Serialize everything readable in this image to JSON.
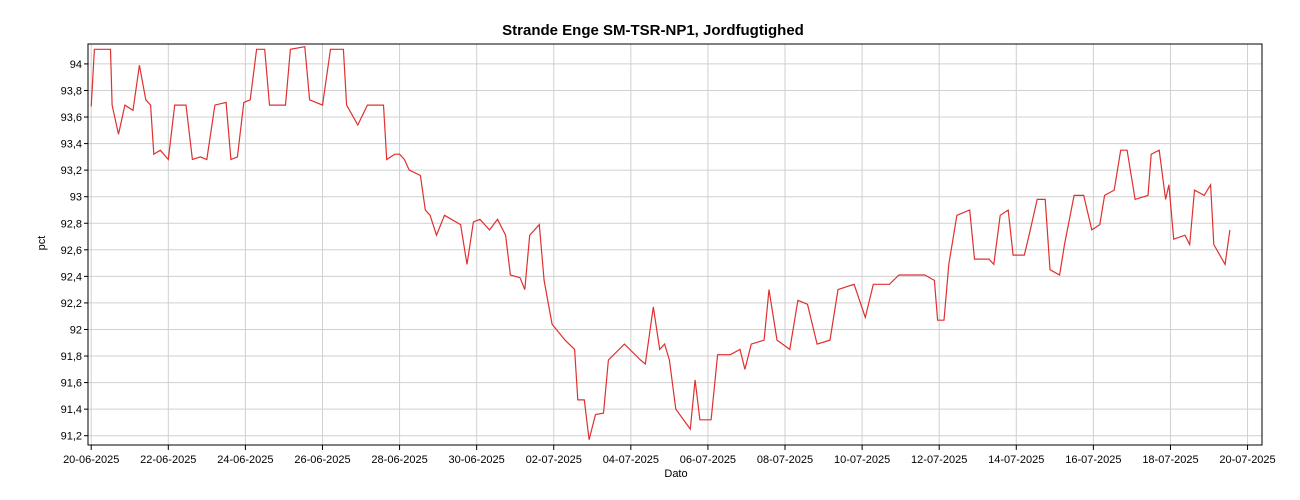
{
  "chart_data": {
    "type": "line",
    "title": "Strande Enge SM-TSR-NP1, Jordfugtighed",
    "x_label": "Dato",
    "y_label": "pct",
    "grid": true,
    "xlim": [
      "19-06-2025 22:00",
      "20-07-2025 09:00"
    ],
    "xticks": [
      "20-06-2025",
      "22-06-2025",
      "24-06-2025",
      "26-06-2025",
      "28-06-2025",
      "30-06-2025",
      "02-07-2025",
      "04-07-2025",
      "06-07-2025",
      "08-07-2025",
      "10-07-2025",
      "12-07-2025",
      "14-07-2025",
      "16-07-2025",
      "18-07-2025",
      "20-07-2025"
    ],
    "ylim": [
      91.13,
      94.15
    ],
    "yticks": [
      {
        "value": 91.2,
        "label": "91,2"
      },
      {
        "value": 91.4,
        "label": "91,4"
      },
      {
        "value": 91.6,
        "label": "91,6"
      },
      {
        "value": 91.8,
        "label": "91,8"
      },
      92,
      {
        "value": 92.2,
        "label": "92,2"
      },
      {
        "value": 92.4,
        "label": "92,4"
      },
      {
        "value": 92.6,
        "label": "92,6"
      },
      {
        "value": 92.8,
        "label": "92,8"
      },
      93,
      {
        "value": 93.2,
        "label": "93,2"
      },
      {
        "value": 93.4,
        "label": "93,4"
      },
      {
        "value": 93.6,
        "label": "93,6"
      },
      {
        "value": 93.8,
        "label": "93,8"
      },
      94
    ],
    "x": [
      "20-06-2025 00:00",
      "20-06-2025 02:00",
      "20-06-2025 12:00",
      "20-06-2025 13:00",
      "20-06-2025 17:00",
      "20-06-2025 21:00",
      "21-06-2025 02:00",
      "21-06-2025 06:00",
      "21-06-2025 10:00",
      "21-06-2025 13:00",
      "21-06-2025 15:00",
      "21-06-2025 19:00",
      "22-06-2025 00:00",
      "22-06-2025 04:00",
      "22-06-2025 11:00",
      "22-06-2025 15:00",
      "22-06-2025 20:00",
      "23-06-2025 00:00",
      "23-06-2025 05:00",
      "23-06-2025 12:00",
      "23-06-2025 15:00",
      "23-06-2025 19:00",
      "23-06-2025 23:00",
      "24-06-2025 03:00",
      "24-06-2025 07:00",
      "24-06-2025 12:00",
      "24-06-2025 15:00",
      "25-06-2025 01:00",
      "25-06-2025 04:00",
      "25-06-2025 13:00",
      "25-06-2025 16:00",
      "26-06-2025 00:00",
      "26-06-2025 05:00",
      "26-06-2025 13:00",
      "26-06-2025 15:00",
      "26-06-2025 22:00",
      "27-06-2025 04:00",
      "27-06-2025 14:00",
      "27-06-2025 16:00",
      "27-06-2025 21:00",
      "28-06-2025 00:00",
      "28-06-2025 03:00",
      "28-06-2025 06:00",
      "28-06-2025 13:00",
      "28-06-2025 16:00",
      "28-06-2025 19:00",
      "28-06-2025 23:00",
      "29-06-2025 04:00",
      "29-06-2025 14:00",
      "29-06-2025 18:00",
      "29-06-2025 22:00",
      "30-06-2025 02:00",
      "30-06-2025 08:00",
      "30-06-2025 13:00",
      "30-06-2025 18:00",
      "30-06-2025 21:00",
      "01-07-2025 03:00",
      "01-07-2025 06:00",
      "01-07-2025 09:00",
      "01-07-2025 15:00",
      "01-07-2025 18:00",
      "01-07-2025 23:00",
      "02-07-2025 07:00",
      "02-07-2025 13:00",
      "02-07-2025 15:00",
      "02-07-2025 19:00",
      "02-07-2025 22:00",
      "03-07-2025 02:00",
      "03-07-2025 07:00",
      "03-07-2025 10:00",
      "03-07-2025 20:00",
      "04-07-2025 06:00",
      "04-07-2025 09:00",
      "04-07-2025 14:00",
      "04-07-2025 18:00",
      "04-07-2025 21:00",
      "05-07-2025 00:00",
      "05-07-2025 04:00",
      "05-07-2025 13:00",
      "05-07-2025 16:00",
      "05-07-2025 19:00",
      "06-07-2025 02:00",
      "06-07-2025 06:00",
      "06-07-2025 14:00",
      "06-07-2025 20:00",
      "06-07-2025 23:00",
      "07-07-2025 03:00",
      "07-07-2025 11:00",
      "07-07-2025 14:00",
      "07-07-2025 19:00",
      "08-07-2025 03:00",
      "08-07-2025 08:00",
      "08-07-2025 14:00",
      "08-07-2025 20:00",
      "09-07-2025 04:00",
      "09-07-2025 09:00",
      "09-07-2025 19:00",
      "10-07-2025 02:00",
      "10-07-2025 07:00",
      "10-07-2025 17:00",
      "10-07-2025 23:00",
      "11-07-2025 09:00",
      "11-07-2025 15:00",
      "11-07-2025 21:00",
      "11-07-2025 23:00",
      "12-07-2025 03:00",
      "12-07-2025 06:00",
      "12-07-2025 11:00",
      "12-07-2025 19:00",
      "12-07-2025 22:00",
      "13-07-2025 07:00",
      "13-07-2025 10:00",
      "13-07-2025 14:00",
      "13-07-2025 19:00",
      "13-07-2025 22:00",
      "14-07-2025 05:00",
      "14-07-2025 08:00",
      "14-07-2025 13:00",
      "14-07-2025 18:00",
      "14-07-2025 21:00",
      "15-07-2025 03:00",
      "15-07-2025 06:00",
      "15-07-2025 12:00",
      "15-07-2025 18:00",
      "15-07-2025 23:00",
      "16-07-2025 04:00",
      "16-07-2025 07:00",
      "16-07-2025 13:00",
      "16-07-2025 17:00",
      "16-07-2025 21:00",
      "17-07-2025 02:00",
      "17-07-2025 10:00",
      "17-07-2025 12:00",
      "17-07-2025 17:00",
      "17-07-2025 21:00",
      "17-07-2025 23:00",
      "18-07-2025 02:00",
      "18-07-2025 09:00",
      "18-07-2025 12:00",
      "18-07-2025 15:00",
      "18-07-2025 21:00",
      "19-07-2025 01:00",
      "19-07-2025 03:00",
      "19-07-2025 10:00",
      "19-07-2025 13:00"
    ],
    "series": [
      {
        "name": "Jordfugtighed",
        "color": "#e03030",
        "values": [
          93.68,
          94.11,
          94.11,
          93.69,
          93.47,
          93.69,
          93.65,
          93.99,
          93.73,
          93.69,
          93.32,
          93.35,
          93.28,
          93.69,
          93.69,
          93.28,
          93.3,
          93.28,
          93.69,
          93.71,
          93.28,
          93.3,
          93.71,
          93.73,
          94.11,
          94.11,
          93.69,
          93.69,
          94.11,
          94.13,
          93.73,
          93.69,
          94.11,
          94.11,
          93.69,
          93.54,
          93.69,
          93.69,
          93.28,
          93.32,
          93.32,
          93.28,
          93.2,
          93.16,
          92.9,
          92.86,
          92.71,
          92.86,
          92.79,
          92.49,
          92.81,
          92.83,
          92.75,
          92.83,
          92.71,
          92.41,
          92.39,
          92.3,
          92.71,
          92.79,
          92.37,
          92.04,
          91.92,
          91.85,
          91.47,
          91.47,
          91.17,
          91.36,
          91.37,
          91.77,
          91.89,
          91.77,
          91.74,
          92.17,
          91.85,
          91.89,
          91.77,
          91.4,
          91.25,
          91.62,
          91.32,
          91.32,
          91.81,
          91.81,
          91.85,
          91.7,
          91.89,
          91.92,
          92.3,
          91.92,
          91.85,
          92.22,
          92.19,
          91.89,
          91.92,
          92.3,
          92.34,
          92.09,
          92.34,
          92.34,
          92.41,
          92.41,
          92.41,
          92.37,
          92.07,
          92.07,
          92.49,
          92.86,
          92.9,
          92.53,
          92.53,
          92.49,
          92.86,
          92.9,
          92.56,
          92.56,
          92.71,
          92.98,
          92.98,
          92.45,
          92.41,
          92.64,
          93.01,
          93.01,
          92.75,
          92.79,
          93.01,
          93.05,
          93.35,
          93.35,
          92.98,
          93.01,
          93.32,
          93.35,
          92.98,
          93.09,
          92.68,
          92.71,
          92.64,
          93.05,
          93.01,
          93.09,
          92.64,
          92.49,
          92.75
        ]
      }
    ]
  }
}
